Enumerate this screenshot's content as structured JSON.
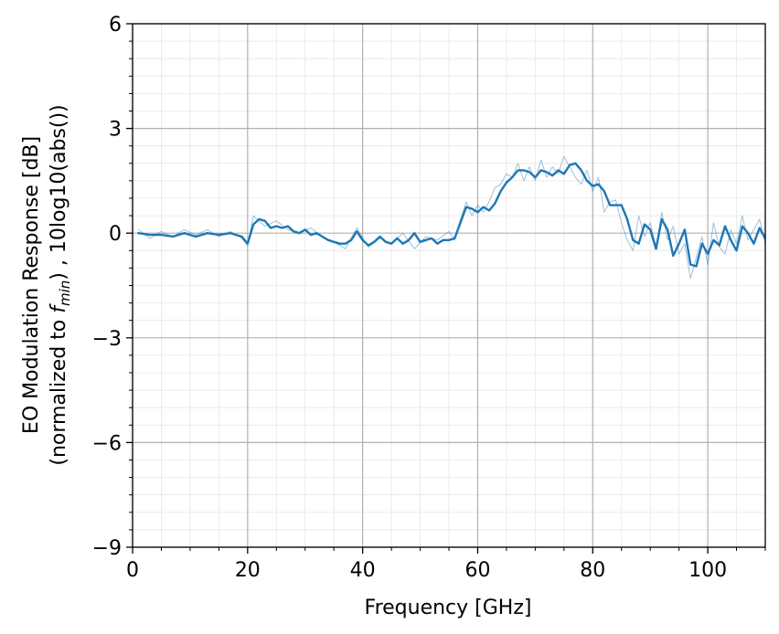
{
  "chart_data": {
    "type": "line",
    "title": "",
    "xlabel": "Frequency [GHz]",
    "ylabel_line1": "EO Modulation Response [dB]",
    "ylabel_line2_prefix": "(normalized to ",
    "ylabel_line2_var": "f",
    "ylabel_line2_sub": "min",
    "ylabel_line2_suffix": ") , 10log10(abs())",
    "xlim": [
      0,
      110
    ],
    "ylim": [
      -9,
      6
    ],
    "xticks": [
      0,
      20,
      40,
      60,
      80,
      100
    ],
    "xtick_labels": [
      "0",
      "20",
      "40",
      "60",
      "80",
      "100"
    ],
    "yticks": [
      -9,
      -6,
      -3,
      0,
      3,
      6
    ],
    "ytick_labels": [
      "−9",
      "−6",
      "−3",
      "0",
      "3",
      "6"
    ],
    "x_minor_step": 5,
    "y_minor_step": 0.5,
    "grid": true,
    "series": [
      {
        "color": "#1f77b4",
        "style": "raw",
        "x": [
          1,
          3,
          5,
          7,
          9,
          11,
          13,
          15,
          17,
          19,
          20,
          21,
          23,
          25,
          27,
          29,
          31,
          33,
          35,
          37,
          39,
          41,
          43,
          45,
          47,
          49,
          51,
          53,
          55,
          56,
          57,
          58,
          59,
          60,
          61,
          62,
          63,
          64,
          65,
          66,
          67,
          68,
          69,
          70,
          71,
          72,
          73,
          74,
          75,
          76,
          77,
          78,
          79,
          80,
          81,
          82,
          83,
          84,
          85,
          86,
          87,
          88,
          89,
          90,
          91,
          92,
          93,
          94,
          95,
          96,
          97,
          98,
          99,
          100,
          101,
          102,
          103,
          104,
          105,
          106,
          107,
          108,
          109,
          110
        ],
        "y": [
          0.1,
          -0.15,
          0.05,
          -0.1,
          0.1,
          -0.05,
          0.1,
          -0.1,
          0.05,
          -0.15,
          -0.35,
          0.5,
          0.2,
          0.35,
          0.1,
          0.0,
          0.15,
          -0.1,
          -0.25,
          -0.45,
          0.15,
          -0.4,
          -0.15,
          -0.3,
          0.0,
          -0.45,
          -0.1,
          -0.2,
          0.05,
          -0.2,
          0.4,
          0.9,
          0.5,
          0.8,
          0.6,
          0.9,
          1.3,
          1.4,
          1.7,
          1.6,
          2.0,
          1.5,
          1.9,
          1.5,
          2.1,
          1.6,
          1.9,
          1.7,
          2.2,
          1.9,
          1.6,
          1.4,
          1.8,
          1.2,
          1.6,
          0.6,
          0.9,
          0.95,
          0.3,
          -0.2,
          -0.5,
          0.5,
          -0.1,
          0.3,
          -0.4,
          0.6,
          -0.2,
          0.2,
          -0.6,
          -0.3,
          -1.3,
          -0.7,
          -0.1,
          -0.9,
          0.3,
          -0.4,
          -0.6,
          0.1,
          -0.3,
          0.5,
          -0.2,
          0.1,
          0.4,
          -0.3
        ]
      },
      {
        "color": "#1f77b4",
        "style": "smoothed",
        "x": [
          1,
          3,
          5,
          7,
          9,
          11,
          13,
          15,
          17,
          19,
          20,
          21,
          22,
          23,
          24,
          25,
          26,
          27,
          28,
          29,
          30,
          31,
          32,
          33,
          34,
          35,
          36,
          37,
          38,
          39,
          40,
          41,
          42,
          43,
          44,
          45,
          46,
          47,
          48,
          49,
          50,
          51,
          52,
          53,
          54,
          55,
          56,
          57,
          58,
          59,
          60,
          61,
          62,
          63,
          64,
          65,
          66,
          67,
          68,
          69,
          70,
          71,
          72,
          73,
          74,
          75,
          76,
          77,
          78,
          79,
          80,
          81,
          82,
          83,
          84,
          85,
          86,
          87,
          88,
          89,
          90,
          91,
          92,
          93,
          94,
          95,
          96,
          97,
          98,
          99,
          100,
          101,
          102,
          103,
          104,
          105,
          106,
          107,
          108,
          109,
          110
        ],
        "y": [
          0.0,
          -0.05,
          -0.05,
          -0.1,
          0.0,
          -0.1,
          0.0,
          -0.05,
          0.0,
          -0.1,
          -0.3,
          0.25,
          0.4,
          0.35,
          0.15,
          0.2,
          0.15,
          0.2,
          0.05,
          0.0,
          0.1,
          -0.05,
          0.0,
          -0.1,
          -0.2,
          -0.25,
          -0.3,
          -0.3,
          -0.2,
          0.05,
          -0.2,
          -0.35,
          -0.25,
          -0.1,
          -0.25,
          -0.3,
          -0.15,
          -0.3,
          -0.2,
          0.0,
          -0.25,
          -0.2,
          -0.15,
          -0.3,
          -0.2,
          -0.2,
          -0.15,
          0.3,
          0.75,
          0.7,
          0.6,
          0.75,
          0.65,
          0.85,
          1.2,
          1.45,
          1.6,
          1.8,
          1.8,
          1.75,
          1.6,
          1.8,
          1.75,
          1.65,
          1.8,
          1.7,
          1.95,
          2.0,
          1.8,
          1.5,
          1.35,
          1.4,
          1.2,
          0.8,
          0.8,
          0.8,
          0.4,
          -0.2,
          -0.3,
          0.25,
          0.1,
          -0.45,
          0.4,
          0.1,
          -0.65,
          -0.3,
          0.1,
          -0.9,
          -0.95,
          -0.3,
          -0.6,
          -0.2,
          -0.35,
          0.2,
          -0.2,
          -0.5,
          0.2,
          0.0,
          -0.3,
          0.15,
          -0.15
        ]
      }
    ]
  }
}
